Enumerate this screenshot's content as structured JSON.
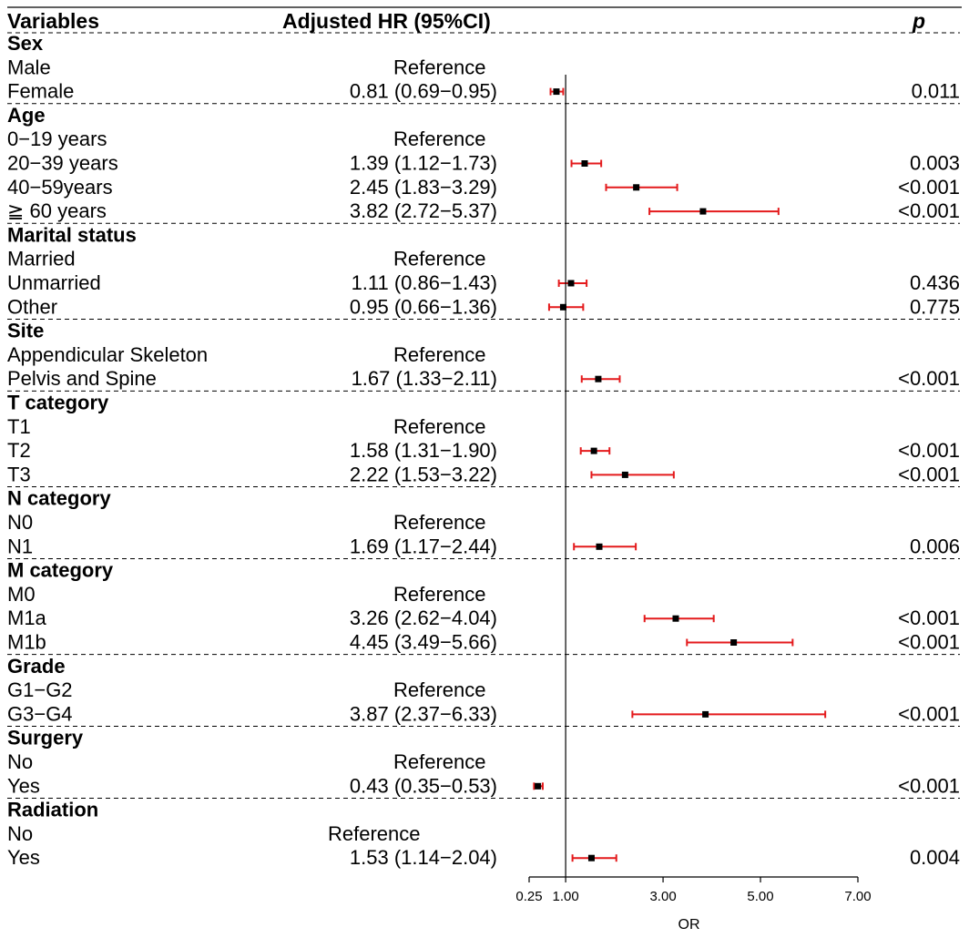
{
  "chart_data": {
    "type": "forest",
    "headers": {
      "variables": "Variables",
      "estimate": "Adjusted HR (95%CI)",
      "p": "p"
    },
    "colors": {
      "ci": "#e41a1c",
      "point": "#000000",
      "axis": "#000000",
      "divider": "#000000"
    },
    "reference_value": 1.0,
    "x_axis": {
      "label": "OR",
      "ticks": [
        0.25,
        1.0,
        3.0,
        5.0,
        7.0
      ],
      "tick_labels": [
        "0.25",
        "1.00",
        "3.00",
        "5.00",
        "7.00"
      ],
      "range": [
        0.25,
        7.0
      ]
    },
    "groups": [
      {
        "name": "Sex",
        "rows": [
          {
            "label": "Male",
            "text": "Reference"
          },
          {
            "label": "Female",
            "text": "0.81 (0.69−0.95)",
            "hr": 0.81,
            "lo": 0.69,
            "hi": 0.95,
            "p": "0.011"
          }
        ]
      },
      {
        "name": "Age",
        "rows": [
          {
            "label": "0−19 years",
            "text": "Reference"
          },
          {
            "label": "20−39 years",
            "text": "1.39 (1.12−1.73)",
            "hr": 1.39,
            "lo": 1.12,
            "hi": 1.73,
            "p": "0.003"
          },
          {
            "label": "40−59years",
            "text": "2.45 (1.83−3.29)",
            "hr": 2.45,
            "lo": 1.83,
            "hi": 3.29,
            "p": "<0.001"
          },
          {
            "label": "≧ 60 years",
            "text": "3.82 (2.72−5.37)",
            "hr": 3.82,
            "lo": 2.72,
            "hi": 5.37,
            "p": "<0.001"
          }
        ]
      },
      {
        "name": "Marital status",
        "rows": [
          {
            "label": "Married",
            "text": "Reference"
          },
          {
            "label": "Unmarried",
            "text": "1.11 (0.86−1.43)",
            "hr": 1.11,
            "lo": 0.86,
            "hi": 1.43,
            "p": "0.436"
          },
          {
            "label": "Other",
            "text": "0.95 (0.66−1.36)",
            "hr": 0.95,
            "lo": 0.66,
            "hi": 1.36,
            "p": "0.775"
          }
        ]
      },
      {
        "name": "Site",
        "rows": [
          {
            "label": "Appendicular Skeleton",
            "text": "Reference"
          },
          {
            "label": "Pelvis and Spine",
            "text": "1.67 (1.33−2.11)",
            "hr": 1.67,
            "lo": 1.33,
            "hi": 2.11,
            "p": "<0.001"
          }
        ]
      },
      {
        "name": "T category",
        "rows": [
          {
            "label": "T1",
            "text": "Reference"
          },
          {
            "label": "T2",
            "text": "1.58 (1.31−1.90)",
            "hr": 1.58,
            "lo": 1.31,
            "hi": 1.9,
            "p": "<0.001"
          },
          {
            "label": "T3",
            "text": "2.22 (1.53−3.22)",
            "hr": 2.22,
            "lo": 1.53,
            "hi": 3.22,
            "p": "<0.001"
          }
        ]
      },
      {
        "name": "N category",
        "rows": [
          {
            "label": "N0",
            "text": "Reference"
          },
          {
            "label": "N1",
            "text": "1.69 (1.17−2.44)",
            "hr": 1.69,
            "lo": 1.17,
            "hi": 2.44,
            "p": "0.006"
          }
        ]
      },
      {
        "name": "M category",
        "rows": [
          {
            "label": "M0",
            "text": "Reference"
          },
          {
            "label": "M1a",
            "text": "3.26 (2.62−4.04)",
            "hr": 3.26,
            "lo": 2.62,
            "hi": 4.04,
            "p": "<0.001"
          },
          {
            "label": "M1b",
            "text": "4.45 (3.49−5.66)",
            "hr": 4.45,
            "lo": 3.49,
            "hi": 5.66,
            "p": "<0.001"
          }
        ]
      },
      {
        "name": "Grade",
        "rows": [
          {
            "label": "G1−G2",
            "text": "Reference"
          },
          {
            "label": "G3−G4",
            "text": "3.87 (2.37−6.33)",
            "hr": 3.87,
            "lo": 2.37,
            "hi": 6.33,
            "p": "<0.001"
          }
        ]
      },
      {
        "name": "Surgery",
        "rows": [
          {
            "label": "No",
            "text": "Reference"
          },
          {
            "label": "Yes",
            "text": "0.43 (0.35−0.53)",
            "hr": 0.43,
            "lo": 0.35,
            "hi": 0.53,
            "p": "<0.001"
          }
        ]
      },
      {
        "name": "Radiation",
        "rows": [
          {
            "label": "No",
            "text": "Reference"
          },
          {
            "label": "Yes",
            "text": "1.53 (1.14−2.04)",
            "hr": 1.53,
            "lo": 1.14,
            "hi": 2.04,
            "p": "0.004"
          }
        ]
      }
    ]
  }
}
